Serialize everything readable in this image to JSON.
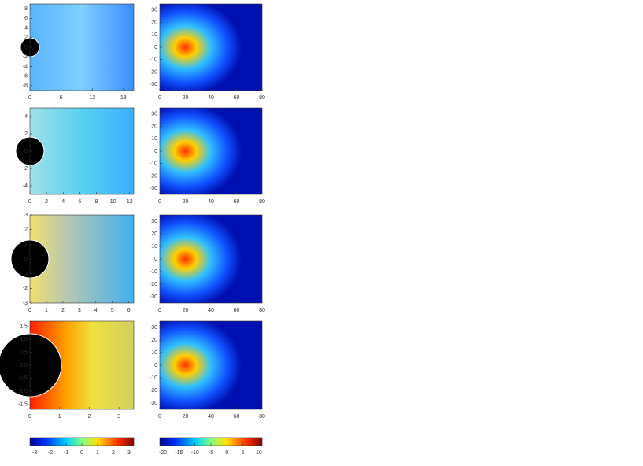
{
  "chart_data": [
    {
      "type": "heatmap",
      "xlim": [
        0,
        20
      ],
      "ylim": [
        -9,
        9
      ],
      "xticks": [
        0,
        6,
        12,
        18
      ],
      "yticks": [
        8,
        6,
        4,
        2,
        0,
        -2,
        -4,
        -6,
        -8
      ]
    },
    {
      "type": "heatmap",
      "xlim": [
        0,
        80
      ],
      "ylim": [
        -35,
        35
      ],
      "xticks": [
        0,
        20,
        40,
        60,
        80
      ],
      "yticks": [
        30,
        20,
        10,
        0,
        -10,
        -20,
        -30
      ]
    },
    {
      "type": "heatmap",
      "xlim": [
        0,
        12.5
      ],
      "ylim": [
        -5,
        5
      ],
      "xticks": [
        0,
        2,
        4,
        6,
        8,
        10,
        12
      ],
      "yticks": [
        4,
        2,
        0,
        -2,
        -4
      ]
    },
    {
      "type": "heatmap",
      "xlim": [
        0,
        80
      ],
      "ylim": [
        -35,
        35
      ],
      "xticks": [
        0,
        20,
        40,
        60,
        80
      ],
      "yticks": [
        30,
        20,
        10,
        0,
        -10,
        -20,
        -30
      ]
    },
    {
      "type": "heatmap",
      "xlim": [
        0,
        6.3
      ],
      "ylim": [
        -3,
        3
      ],
      "xticks": [
        0,
        1,
        2,
        3,
        4,
        5,
        6
      ],
      "yticks": [
        3,
        2,
        1,
        0,
        -1,
        -2,
        -3
      ]
    },
    {
      "type": "heatmap",
      "xlim": [
        0,
        80
      ],
      "ylim": [
        -35,
        35
      ],
      "xticks": [
        0,
        20,
        40,
        60,
        80
      ],
      "yticks": [
        30,
        20,
        10,
        0,
        -10,
        -20,
        -30
      ]
    },
    {
      "type": "heatmap",
      "xlim": [
        0,
        3.5
      ],
      "ylim": [
        -1.7,
        1.7
      ],
      "xticks": [
        0,
        1,
        2,
        3
      ],
      "yticks": [
        1.5,
        {
          "value": 1,
          "label": "1.0"
        },
        0.5,
        {
          "value": 0,
          "label": "0.0"
        },
        -0.5,
        {
          "value": -1,
          "label": "-1.0"
        },
        -1.5
      ]
    },
    {
      "type": "heatmap",
      "xlim": [
        0,
        80
      ],
      "ylim": [
        -35,
        35
      ],
      "xticks": [
        0,
        20,
        40,
        60,
        80
      ],
      "yticks": [
        30,
        20,
        10,
        0,
        -10,
        -20,
        -30
      ]
    },
    {
      "type": "colorbar",
      "xlim": [
        -3.3,
        3.3
      ],
      "xticks": [
        -3,
        -2,
        -1,
        0,
        1,
        2,
        3
      ]
    },
    {
      "type": "colorbar",
      "xlim": [
        -21,
        11
      ],
      "xticks": [
        -20,
        -15,
        -10,
        -5,
        0,
        5,
        10
      ]
    }
  ]
}
